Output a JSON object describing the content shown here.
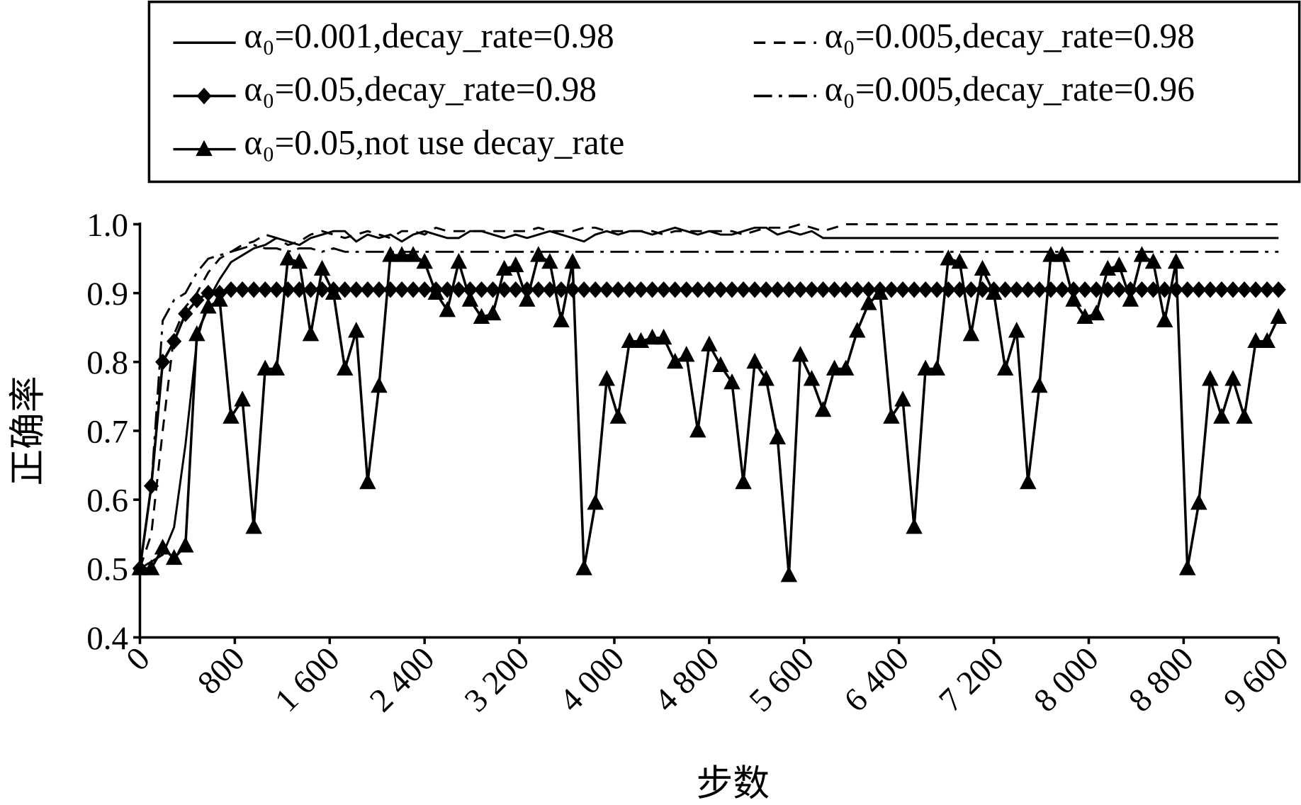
{
  "chart_data": {
    "type": "line",
    "x_label": "步数",
    "y_label": "正确率",
    "x": [
      0,
      96,
      192,
      288,
      384,
      480,
      576,
      672,
      768,
      864,
      960,
      1056,
      1152,
      1248,
      1344,
      1440,
      1536,
      1632,
      1728,
      1824,
      1920,
      2016,
      2112,
      2208,
      2304,
      2400,
      2496,
      2592,
      2688,
      2784,
      2880,
      2976,
      3072,
      3168,
      3264,
      3360,
      3456,
      3552,
      3648,
      3744,
      3840,
      3936,
      4032,
      4128,
      4224,
      4320,
      4416,
      4512,
      4608,
      4704,
      4800,
      4896,
      4992,
      5088,
      5184,
      5280,
      5376,
      5472,
      5568,
      5664,
      5760,
      5856,
      5952,
      6048,
      6144,
      6240,
      6336,
      6432,
      6528,
      6624,
      6720,
      6816,
      6912,
      7008,
      7104,
      7200,
      7296,
      7392,
      7488,
      7584,
      7680,
      7776,
      7872,
      7968,
      8064,
      8160,
      8256,
      8352,
      8448,
      8544,
      8640,
      8736,
      8832,
      8928,
      9024,
      9120,
      9216,
      9312,
      9408,
      9504,
      9600
    ],
    "series": [
      {
        "name": "α₀=0.001,decay_rate=0.98",
        "color": "#000000",
        "dash": "solid",
        "marker": "none",
        "values": [
          0.5,
          0.51,
          0.52,
          0.56,
          0.68,
          0.83,
          0.89,
          0.92,
          0.945,
          0.955,
          0.965,
          0.97,
          0.98,
          0.975,
          0.97,
          0.98,
          0.985,
          0.99,
          0.99,
          0.975,
          0.985,
          0.98,
          0.985,
          0.975,
          0.985,
          0.99,
          0.985,
          0.98,
          0.98,
          0.99,
          0.99,
          0.985,
          0.98,
          0.985,
          0.98,
          0.985,
          0.99,
          0.985,
          0.98,
          0.975,
          0.985,
          0.99,
          0.985,
          0.99,
          0.99,
          0.985,
          0.99,
          0.995,
          0.99,
          0.985,
          0.99,
          0.985,
          0.985,
          0.99,
          0.995,
          0.995,
          0.985,
          0.99,
          0.985,
          0.99,
          0.98,
          0.98,
          0.98,
          0.98,
          0.98,
          0.98,
          0.98,
          0.98,
          0.98,
          0.98,
          0.98,
          0.98,
          0.98,
          0.98,
          0.98,
          0.98,
          0.98,
          0.98,
          0.98,
          0.98,
          0.98,
          0.98,
          0.98,
          0.98,
          0.98,
          0.98,
          0.98,
          0.98,
          0.98,
          0.98,
          0.98,
          0.98,
          0.98,
          0.98,
          0.98,
          0.98,
          0.98,
          0.98,
          0.98,
          0.98,
          0.98
        ]
      },
      {
        "name": "α₀=0.005,decay_rate=0.98",
        "color": "#000000",
        "dash": "dashed",
        "marker": "none",
        "values": [
          0.5,
          0.55,
          0.7,
          0.84,
          0.88,
          0.9,
          0.93,
          0.95,
          0.96,
          0.97,
          0.975,
          0.985,
          0.98,
          0.97,
          0.975,
          0.985,
          0.99,
          0.985,
          0.98,
          0.985,
          0.99,
          0.985,
          0.98,
          0.99,
          0.99,
          0.985,
          0.995,
          0.99,
          0.99,
          0.99,
          0.99,
          0.99,
          0.99,
          0.99,
          0.99,
          0.995,
          0.99,
          0.99,
          0.99,
          0.995,
          0.995,
          0.99,
          0.99,
          0.99,
          0.99,
          0.99,
          0.985,
          0.99,
          0.99,
          0.99,
          0.99,
          0.99,
          0.99,
          0.985,
          0.99,
          0.995,
          0.995,
          0.995,
          1,
          0.995,
          0.99,
          0.995,
          1,
          1,
          1,
          1,
          1,
          1,
          1,
          1,
          1,
          1,
          1,
          1,
          1,
          1,
          1,
          1,
          1,
          1,
          1,
          1,
          1,
          1,
          1,
          1,
          1,
          1,
          1,
          1,
          1,
          1,
          1,
          1,
          1,
          1,
          1,
          1,
          1,
          1,
          1
        ]
      },
      {
        "name": "α₀=0.05,decay_rate=0.98",
        "color": "#000000",
        "dash": "solid",
        "marker": "diamond",
        "values": [
          0.5,
          0.62,
          0.8,
          0.83,
          0.87,
          0.89,
          0.9,
          0.9,
          0.905,
          0.905,
          0.905,
          0.905,
          0.905,
          0.905,
          0.905,
          0.905,
          0.905,
          0.905,
          0.905,
          0.905,
          0.905,
          0.905,
          0.905,
          0.905,
          0.905,
          0.905,
          0.905,
          0.905,
          0.905,
          0.905,
          0.905,
          0.905,
          0.905,
          0.905,
          0.905,
          0.905,
          0.905,
          0.905,
          0.905,
          0.905,
          0.905,
          0.905,
          0.905,
          0.905,
          0.905,
          0.905,
          0.905,
          0.905,
          0.905,
          0.905,
          0.905,
          0.905,
          0.905,
          0.905,
          0.905,
          0.905,
          0.905,
          0.905,
          0.905,
          0.905,
          0.905,
          0.905,
          0.905,
          0.905,
          0.905,
          0.905,
          0.905,
          0.905,
          0.905,
          0.905,
          0.905,
          0.905,
          0.905,
          0.905,
          0.905,
          0.905,
          0.905,
          0.905,
          0.905,
          0.905,
          0.905,
          0.905,
          0.905,
          0.905,
          0.905,
          0.905,
          0.905,
          0.905,
          0.905,
          0.905,
          0.905,
          0.905,
          0.905,
          0.905,
          0.905,
          0.905,
          0.905,
          0.905,
          0.905,
          0.905,
          0.905
        ]
      },
      {
        "name": "α₀=0.005,decay_rate=0.96",
        "color": "#000000",
        "dash": "dashdot",
        "marker": "none",
        "values": [
          0.5,
          0.62,
          0.86,
          0.89,
          0.9,
          0.93,
          0.95,
          0.955,
          0.96,
          0.965,
          0.97,
          0.965,
          0.965,
          0.96,
          0.965,
          0.965,
          0.96,
          0.965,
          0.96,
          0.96,
          0.96,
          0.96,
          0.96,
          0.96,
          0.96,
          0.96,
          0.96,
          0.96,
          0.96,
          0.96,
          0.96,
          0.96,
          0.96,
          0.96,
          0.96,
          0.96,
          0.96,
          0.96,
          0.96,
          0.96,
          0.96,
          0.96,
          0.96,
          0.96,
          0.96,
          0.96,
          0.96,
          0.96,
          0.96,
          0.96,
          0.96,
          0.96,
          0.96,
          0.96,
          0.96,
          0.96,
          0.96,
          0.96,
          0.96,
          0.96,
          0.96,
          0.96,
          0.96,
          0.96,
          0.96,
          0.96,
          0.96,
          0.96,
          0.96,
          0.96,
          0.96,
          0.96,
          0.96,
          0.96,
          0.96,
          0.96,
          0.96,
          0.96,
          0.96,
          0.96,
          0.96,
          0.96,
          0.96,
          0.96,
          0.96,
          0.96,
          0.96,
          0.96,
          0.96,
          0.96,
          0.96,
          0.96,
          0.96,
          0.96,
          0.96,
          0.96,
          0.96,
          0.96,
          0.96,
          0.96,
          0.96
        ]
      },
      {
        "name": "α₀=0.05,not use decay_rate",
        "color": "#000000",
        "dash": "solid",
        "marker": "triangle",
        "values": [
          0.5,
          0.5,
          0.53,
          0.515,
          0.533,
          0.84,
          0.88,
          0.89,
          0.72,
          0.745,
          0.56,
          0.79,
          0.79,
          0.95,
          0.945,
          0.84,
          0.935,
          0.9,
          0.79,
          0.845,
          0.625,
          0.765,
          0.955,
          0.955,
          0.955,
          0.945,
          0.9,
          0.875,
          0.945,
          0.89,
          0.865,
          0.87,
          0.935,
          0.94,
          0.89,
          0.955,
          0.945,
          0.86,
          0.945,
          0.5,
          0.595,
          0.775,
          0.72,
          0.83,
          0.83,
          0.835,
          0.835,
          0.8,
          0.81,
          0.7,
          0.825,
          0.795,
          0.77,
          0.625,
          0.8,
          0.775,
          0.69,
          0.49,
          0.81,
          0.775,
          0.73,
          0.79,
          0.79,
          0.845,
          0.885,
          0.9,
          0.72,
          0.745,
          0.56,
          0.79,
          0.79,
          0.95,
          0.945,
          0.84,
          0.935,
          0.9,
          0.79,
          0.845,
          0.625,
          0.765,
          0.955,
          0.955,
          0.89,
          0.865,
          0.87,
          0.935,
          0.94,
          0.89,
          0.955,
          0.945,
          0.86,
          0.945,
          0.5,
          0.595,
          0.775,
          0.72,
          0.775,
          0.72,
          0.83,
          0.83,
          0.865
        ]
      }
    ],
    "xlim": [
      0,
      9600
    ],
    "xticks": [
      0,
      800,
      {
        "value": 1600,
        "label": "1 600"
      },
      {
        "value": 2400,
        "label": "2 400"
      },
      {
        "value": 3200,
        "label": "3 200"
      },
      {
        "value": 4000,
        "label": "4 000"
      },
      {
        "value": 4800,
        "label": "4 800"
      },
      {
        "value": 5600,
        "label": "5 600"
      },
      {
        "value": 6400,
        "label": "6 400"
      },
      {
        "value": 7200,
        "label": "7 200"
      },
      {
        "value": 8000,
        "label": "8 000"
      },
      {
        "value": 8800,
        "label": "8 800"
      },
      {
        "value": 9600,
        "label": "9 600"
      }
    ],
    "ylim": [
      0.4,
      1
    ],
    "yticks": [
      0.4,
      0.5,
      0.6,
      0.7,
      0.8,
      0.9,
      {
        "value": 1,
        "label": "1.0"
      }
    ],
    "grid": false,
    "legend": "top"
  }
}
